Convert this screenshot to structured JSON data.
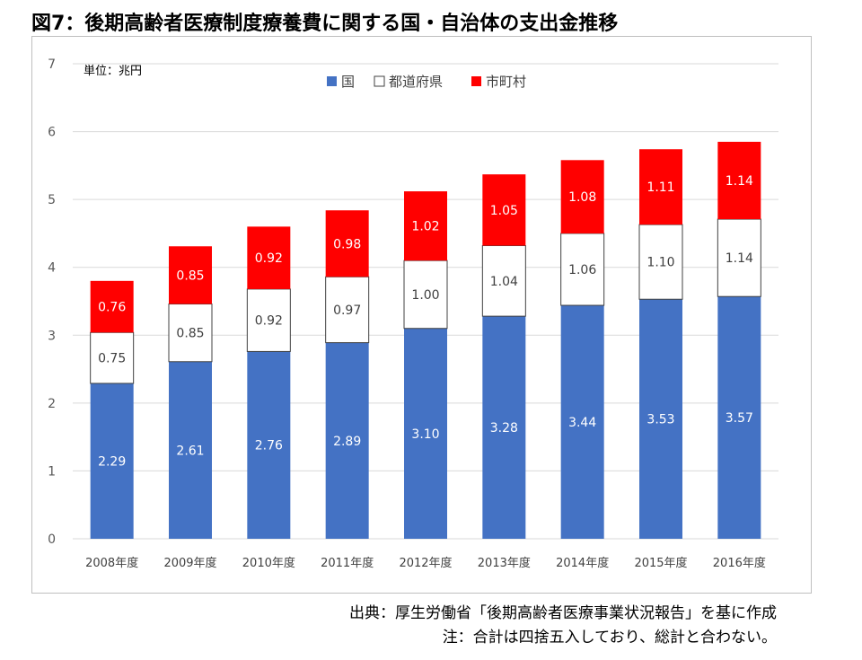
{
  "title": "図7：後期高齢者医療制度療養費に関する国・自治体の支出金推移",
  "source_note": "出典：厚生労働省「後期高齢者医療事業状況報告」を基に作成",
  "rounding_note": "注：合計は四捨五入しており、総計と合わない。",
  "chart_data": {
    "type": "bar",
    "stacked": true,
    "unit_label": "単位：兆円",
    "categories": [
      "2008年度",
      "2009年度",
      "2010年度",
      "2011年度",
      "2012年度",
      "2013年度",
      "2014年度",
      "2015年度",
      "2016年度"
    ],
    "series": [
      {
        "name": "国",
        "color": "#4472c4",
        "label_color": "#ffffff",
        "values": [
          2.29,
          2.61,
          2.76,
          2.89,
          3.1,
          3.28,
          3.44,
          3.53,
          3.57
        ],
        "labels": [
          "2.29",
          "2.61",
          "2.76",
          "2.89",
          "3.10",
          "3.28",
          "3.44",
          "3.53",
          "3.57"
        ]
      },
      {
        "name": "都道府県",
        "color": "#ffffff",
        "label_color": "#404040",
        "values": [
          0.75,
          0.85,
          0.92,
          0.97,
          1.0,
          1.04,
          1.06,
          1.1,
          1.14
        ],
        "labels": [
          "0.75",
          "0.85",
          "0.92",
          "0.97",
          "1.00",
          "1.04",
          "1.06",
          "1.10",
          "1.14"
        ]
      },
      {
        "name": "市町村",
        "color": "#ff0000",
        "label_color": "#ffffff",
        "values": [
          0.76,
          0.85,
          0.92,
          0.98,
          1.02,
          1.05,
          1.08,
          1.11,
          1.14
        ],
        "labels": [
          "0.76",
          "0.85",
          "0.92",
          "0.98",
          "1.02",
          "1.05",
          "1.08",
          "1.11",
          "1.14"
        ]
      }
    ],
    "ylim": [
      0,
      7
    ],
    "yticks": [
      "0",
      "1",
      "2",
      "3",
      "4",
      "5",
      "6",
      "7"
    ],
    "grid": true,
    "legend_position": "top-center"
  }
}
